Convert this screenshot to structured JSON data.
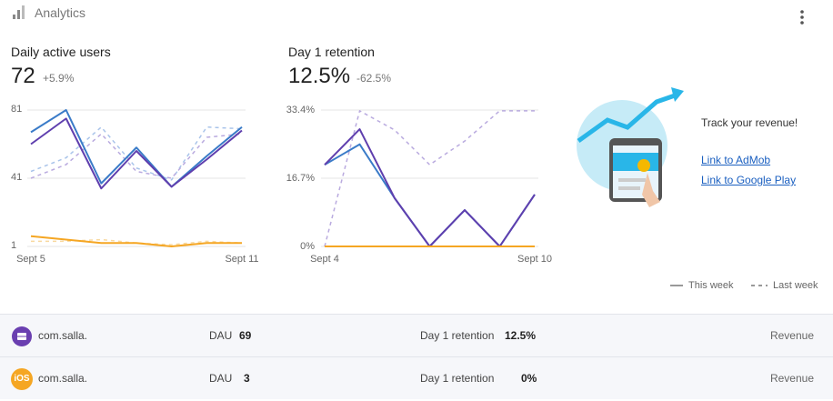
{
  "header": {
    "title": "Analytics"
  },
  "summary": [
    {
      "title": "Daily active users",
      "value": "72",
      "change": "+5.9%"
    },
    {
      "title": "Day 1 retention",
      "value": "12.5%",
      "change": "-62.5%"
    }
  ],
  "chart_data": [
    {
      "type": "line",
      "categories": [
        "Sept 5",
        null,
        null,
        null,
        null,
        null,
        "Sept 11"
      ],
      "ylim": [
        1,
        81
      ],
      "yticks": [
        1,
        41,
        81
      ],
      "grid": true,
      "series": [
        {
          "color": "#a9c4ea",
          "dashed": true,
          "values": [
            45,
            53,
            71,
            47,
            40,
            71,
            70
          ]
        },
        {
          "color": "#b9aadf",
          "dashed": true,
          "values": [
            41,
            49,
            67,
            45,
            41,
            65,
            67
          ]
        },
        {
          "color": "#f8d9a0",
          "dashed": true,
          "values": [
            4,
            4,
            5,
            3,
            2,
            4,
            3
          ]
        },
        {
          "color": "#3a7bc8",
          "dashed": false,
          "values": [
            68,
            81,
            38,
            59,
            36,
            54,
            71
          ]
        },
        {
          "color": "#5f3fae",
          "dashed": false,
          "values": [
            61,
            76,
            35,
            57,
            36,
            52,
            69
          ]
        },
        {
          "color": "#f5a623",
          "dashed": false,
          "values": [
            7,
            5,
            3,
            3,
            1,
            3,
            3
          ]
        }
      ]
    },
    {
      "type": "line",
      "categories": [
        "Sept 4",
        null,
        null,
        null,
        null,
        null,
        "Sept 10"
      ],
      "ylim": [
        0,
        33.4
      ],
      "yticks": [
        {
          "value": 0,
          "label": "0%"
        },
        {
          "value": 16.7,
          "label": "16.7%"
        },
        {
          "value": 33.4,
          "label": "33.4%"
        }
      ],
      "grid": true,
      "series": [
        {
          "color": "#b9aadf",
          "dashed": true,
          "values": [
            0,
            33.2,
            28.5,
            20,
            25.8,
            33.2,
            33.2
          ]
        },
        {
          "color": "#3a7bc8",
          "dashed": false,
          "values": [
            20,
            25,
            11.8,
            0,
            8.9,
            0,
            12.7
          ]
        },
        {
          "color": "#5f3fae",
          "dashed": false,
          "values": [
            20,
            28.7,
            11.8,
            0,
            8.9,
            0,
            12.7
          ]
        },
        {
          "color": "#f5a623",
          "dashed": false,
          "values": [
            0,
            0,
            0,
            0,
            0,
            0,
            0
          ]
        }
      ]
    }
  ],
  "legend": [
    "This week",
    "Last week"
  ],
  "promo": {
    "title": "Track your revenue!",
    "links": [
      "Link to AdMob",
      "Link to Google Play"
    ]
  },
  "apps": [
    {
      "icon": "",
      "name": "com.salla.",
      "dau_label": "DAU",
      "dau": 69,
      "retention_label": "Day 1 retention",
      "retention": "12.5%",
      "revenue": "Revenue"
    },
    {
      "icon": "iOS",
      "name": "com.salla.",
      "dau_label": "DAU",
      "dau": 3,
      "retention_label": "Day 1 retention",
      "retention": "0%",
      "revenue": "Revenue"
    }
  ]
}
